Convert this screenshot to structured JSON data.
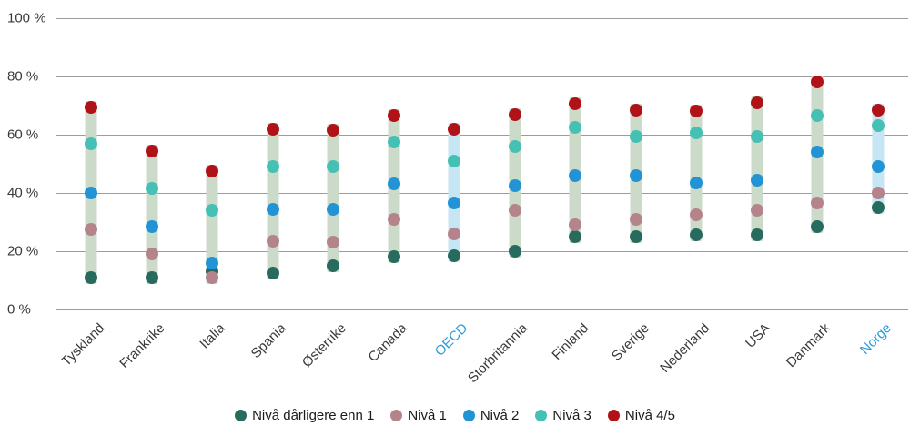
{
  "chart_data": {
    "type": "scatter",
    "subtype": "dot-range-columns",
    "title": "",
    "ylabel": "",
    "xlabel": "",
    "ylim": [
      0,
      100
    ],
    "yticks": [
      0,
      20,
      40,
      60,
      80,
      100
    ],
    "ytick_suffix": " %",
    "grid": true,
    "legend_position": "bottom-center",
    "categories": [
      "Tyskland",
      "Frankrike",
      "Italia",
      "Spania",
      "Østerrike",
      "Canada",
      "OECD",
      "Storbritannia",
      "Finland",
      "Sverige",
      "Nederland",
      "USA",
      "Danmark",
      "Norge"
    ],
    "highlighted_categories": [
      "OECD",
      "Norge"
    ],
    "series": [
      {
        "name": "Nivå dårligere enn 1",
        "color": "#276a5e",
        "values": [
          11,
          11,
          13,
          12.5,
          15,
          18,
          18.5,
          20,
          25,
          25,
          25.5,
          25.5,
          28.5,
          35
        ]
      },
      {
        "name": "Nivå 1",
        "color": "#b5838b",
        "values": [
          27.5,
          19,
          11,
          23.5,
          23,
          31,
          26,
          34,
          29,
          31,
          32.5,
          34,
          36.5,
          40
        ]
      },
      {
        "name": "Nivå 2",
        "color": "#2293d5",
        "values": [
          40,
          28.5,
          16,
          34.5,
          34.5,
          43,
          36.5,
          42.5,
          46,
          46,
          43.5,
          44.5,
          54,
          49
        ]
      },
      {
        "name": "Nivå 3",
        "color": "#45c0b4",
        "values": [
          57,
          41.5,
          34,
          49,
          49,
          57.5,
          51,
          56,
          62.5,
          59.5,
          60.5,
          59.5,
          66.5,
          63
        ]
      },
      {
        "name": "Nivå 4/5",
        "color": "#b01218",
        "values": [
          69.5,
          54.5,
          47.5,
          62,
          61.5,
          66.5,
          62,
          67,
          70.5,
          68.5,
          68,
          71,
          78,
          68.5
        ]
      }
    ],
    "colors": {
      "band": "#ccdbc9",
      "band_highlight": "#c5e6f2",
      "gridline": "#9c9c9c",
      "axis_label": "#3a3a3a",
      "axis_label_highlight": "#2e9bd6"
    }
  }
}
